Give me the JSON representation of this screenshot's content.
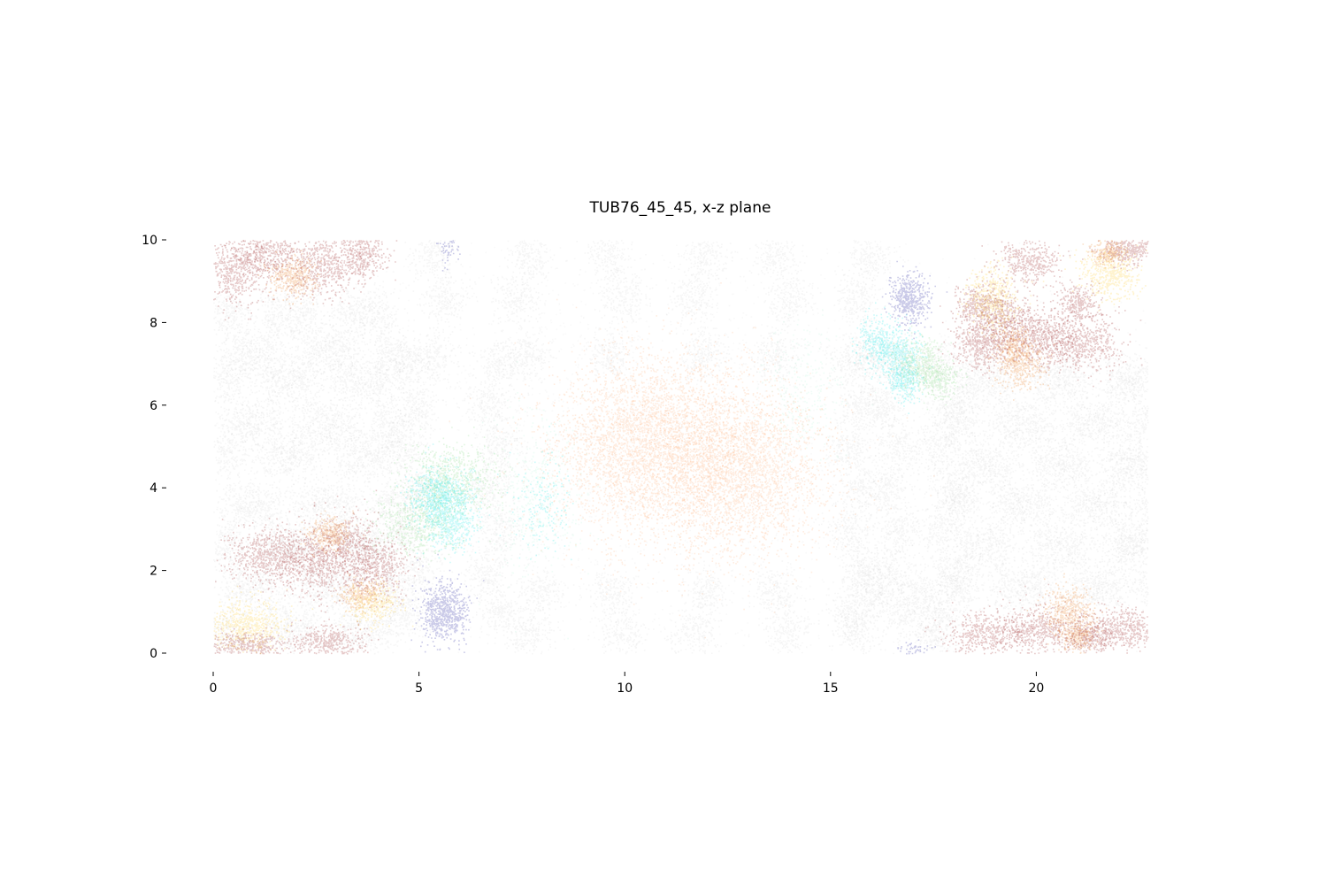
{
  "chart_data": {
    "type": "scatter",
    "title": "TUB76_45_45, x-z plane",
    "xlabel": "",
    "ylabel": "",
    "xlim": [
      0,
      22.7
    ],
    "ylim": [
      0,
      10
    ],
    "xticks": [
      0,
      5,
      10,
      15,
      20
    ],
    "yticks": [
      0,
      2,
      4,
      6,
      8,
      10
    ],
    "xtick_labels": [
      "0",
      "5",
      "10",
      "15",
      "20"
    ],
    "ytick_labels": [
      "0",
      "2",
      "4",
      "6",
      "8",
      "10"
    ],
    "grid": false,
    "legend": "none",
    "colors": {
      "gray": "#9a9a9a",
      "darkred": "#8b0a0a",
      "orange": "#e8740c",
      "gold": "#ffc81e",
      "navy": "#0c0c96",
      "cyan": "#14e6e6",
      "lightgreen": "#7ad87a",
      "aquamarine": "#8cf0c8",
      "salmon": "#ff8c46"
    },
    "clusters": [
      {
        "color": "salmon",
        "x": 10.5,
        "z": 5.1,
        "sx": 1.1,
        "sz": 1.0,
        "n": 3200
      },
      {
        "color": "salmon",
        "x": 12.8,
        "z": 4.4,
        "sx": 1.0,
        "sz": 1.0,
        "n": 2600
      },
      {
        "color": "salmon",
        "x": 11.5,
        "z": 4.8,
        "sx": 1.8,
        "sz": 1.3,
        "n": 1500
      },
      {
        "color": "aquamarine",
        "x": 7.8,
        "z": 3.8,
        "sx": 0.6,
        "sz": 1.0,
        "n": 500
      },
      {
        "color": "aquamarine",
        "x": 14.3,
        "z": 6.3,
        "sx": 0.5,
        "sz": 0.8,
        "n": 300
      },
      {
        "color": "cyan",
        "x": 8.0,
        "z": 3.6,
        "sx": 0.3,
        "sz": 0.6,
        "n": 180
      },
      {
        "color": "lightgreen",
        "x": 5.8,
        "z": 4.3,
        "sx": 0.5,
        "sz": 0.4,
        "n": 700
      },
      {
        "color": "lightgreen",
        "x": 5.0,
        "z": 3.2,
        "sx": 0.5,
        "sz": 0.4,
        "n": 600
      },
      {
        "color": "cyan",
        "x": 5.7,
        "z": 3.4,
        "sx": 0.35,
        "sz": 0.45,
        "n": 900
      },
      {
        "color": "cyan",
        "x": 5.3,
        "z": 3.9,
        "sx": 0.3,
        "sz": 0.3,
        "n": 300
      },
      {
        "color": "cyan",
        "x": 16.6,
        "z": 7.2,
        "sx": 0.3,
        "sz": 0.35,
        "n": 500
      },
      {
        "color": "cyan",
        "x": 16.1,
        "z": 7.6,
        "sx": 0.25,
        "sz": 0.3,
        "n": 250
      },
      {
        "color": "cyan",
        "x": 16.8,
        "z": 6.6,
        "sx": 0.2,
        "sz": 0.25,
        "n": 250
      },
      {
        "color": "lightgreen",
        "x": 17.2,
        "z": 7.0,
        "sx": 0.3,
        "sz": 0.3,
        "n": 400
      },
      {
        "color": "lightgreen",
        "x": 17.6,
        "z": 6.6,
        "sx": 0.25,
        "sz": 0.2,
        "n": 250
      },
      {
        "color": "navy",
        "x": 5.6,
        "z": 1.0,
        "sx": 0.28,
        "sz": 0.35,
        "n": 700
      },
      {
        "color": "navy",
        "x": 16.9,
        "z": 8.6,
        "sx": 0.22,
        "sz": 0.3,
        "n": 500
      },
      {
        "color": "navy",
        "x": 5.7,
        "z": 9.8,
        "sx": 0.15,
        "sz": 0.25,
        "n": 60
      },
      {
        "color": "navy",
        "x": 17.0,
        "z": 0.1,
        "sx": 0.2,
        "sz": 0.1,
        "n": 50
      },
      {
        "color": "darkred",
        "x": 0.5,
        "z": 9.3,
        "sx": 0.45,
        "sz": 0.4,
        "n": 600
      },
      {
        "color": "darkred",
        "x": 1.3,
        "z": 9.7,
        "sx": 0.4,
        "sz": 0.3,
        "n": 400
      },
      {
        "color": "darkred",
        "x": 2.6,
        "z": 9.4,
        "sx": 0.5,
        "sz": 0.4,
        "n": 600
      },
      {
        "color": "darkred",
        "x": 3.6,
        "z": 9.7,
        "sx": 0.3,
        "sz": 0.3,
        "n": 350
      },
      {
        "color": "orange",
        "x": 1.9,
        "z": 9.1,
        "sx": 0.3,
        "sz": 0.25,
        "n": 400
      },
      {
        "color": "darkred",
        "x": 1.4,
        "z": 2.4,
        "sx": 0.5,
        "sz": 0.35,
        "n": 700
      },
      {
        "color": "darkred",
        "x": 2.5,
        "z": 2.2,
        "sx": 0.45,
        "sz": 0.4,
        "n": 600
      },
      {
        "color": "darkred",
        "x": 3.3,
        "z": 2.6,
        "sx": 0.4,
        "sz": 0.4,
        "n": 500
      },
      {
        "color": "darkred",
        "x": 4.0,
        "z": 2.1,
        "sx": 0.35,
        "sz": 0.35,
        "n": 450
      },
      {
        "color": "orange",
        "x": 2.8,
        "z": 2.9,
        "sx": 0.25,
        "sz": 0.2,
        "n": 350
      },
      {
        "color": "orange",
        "x": 3.6,
        "z": 1.4,
        "sx": 0.25,
        "sz": 0.2,
        "n": 300
      },
      {
        "color": "gold",
        "x": 3.9,
        "z": 1.2,
        "sx": 0.3,
        "sz": 0.25,
        "n": 300
      },
      {
        "color": "gold",
        "x": 0.8,
        "z": 0.7,
        "sx": 0.45,
        "sz": 0.3,
        "n": 600
      },
      {
        "color": "darkred",
        "x": 0.8,
        "z": 0.2,
        "sx": 0.5,
        "sz": 0.15,
        "n": 400
      },
      {
        "color": "darkred",
        "x": 2.8,
        "z": 0.3,
        "sx": 0.45,
        "sz": 0.2,
        "n": 400
      },
      {
        "color": "darkred",
        "x": 18.7,
        "z": 7.5,
        "sx": 0.35,
        "sz": 0.3,
        "n": 550
      },
      {
        "color": "darkred",
        "x": 18.6,
        "z": 8.4,
        "sx": 0.3,
        "sz": 0.3,
        "n": 400
      },
      {
        "color": "darkred",
        "x": 20.0,
        "z": 7.7,
        "sx": 0.5,
        "sz": 0.35,
        "n": 600
      },
      {
        "color": "darkred",
        "x": 21.0,
        "z": 7.5,
        "sx": 0.5,
        "sz": 0.35,
        "n": 600
      },
      {
        "color": "darkred",
        "x": 21.0,
        "z": 8.5,
        "sx": 0.25,
        "sz": 0.25,
        "n": 300
      },
      {
        "color": "darkred",
        "x": 19.8,
        "z": 9.5,
        "sx": 0.35,
        "sz": 0.25,
        "n": 400
      },
      {
        "color": "darkred",
        "x": 19.3,
        "z": 8.2,
        "sx": 0.3,
        "sz": 0.3,
        "n": 300
      },
      {
        "color": "gold",
        "x": 18.9,
        "z": 8.6,
        "sx": 0.3,
        "sz": 0.35,
        "n": 450
      },
      {
        "color": "orange",
        "x": 19.6,
        "z": 7.0,
        "sx": 0.3,
        "sz": 0.3,
        "n": 450
      },
      {
        "color": "orange",
        "x": 19.4,
        "z": 7.5,
        "sx": 0.2,
        "sz": 0.2,
        "n": 200
      },
      {
        "color": "gold",
        "x": 21.8,
        "z": 9.2,
        "sx": 0.35,
        "sz": 0.3,
        "n": 500
      },
      {
        "color": "darkred",
        "x": 22.2,
        "z": 9.8,
        "sx": 0.35,
        "sz": 0.2,
        "n": 400
      },
      {
        "color": "orange",
        "x": 21.7,
        "z": 9.7,
        "sx": 0.2,
        "sz": 0.15,
        "n": 200
      },
      {
        "color": "darkred",
        "x": 18.8,
        "z": 0.5,
        "sx": 0.5,
        "sz": 0.25,
        "n": 500
      },
      {
        "color": "darkred",
        "x": 20.1,
        "z": 0.6,
        "sx": 0.45,
        "sz": 0.3,
        "n": 500
      },
      {
        "color": "darkred",
        "x": 22.1,
        "z": 0.6,
        "sx": 0.45,
        "sz": 0.25,
        "n": 500
      },
      {
        "color": "darkred",
        "x": 21.3,
        "z": 0.4,
        "sx": 0.3,
        "sz": 0.2,
        "n": 300
      },
      {
        "color": "orange",
        "x": 20.8,
        "z": 1.0,
        "sx": 0.3,
        "sz": 0.3,
        "n": 450
      },
      {
        "color": "orange",
        "x": 21.0,
        "z": 0.4,
        "sx": 0.2,
        "sz": 0.15,
        "n": 200
      }
    ],
    "gray_grid": {
      "left": {
        "x": [
          0.5,
          1.4,
          2.3,
          3.2,
          4.1
        ],
        "z": [
          0.6,
          1.6,
          2.6,
          3.6,
          4.8,
          5.6,
          6.6,
          7.3,
          8.2
        ]
      },
      "right": {
        "x": [
          18.3,
          19.2,
          20.1,
          21.0,
          21.9,
          22.6
        ],
        "z": [
          1.6,
          2.6,
          3.6,
          4.6,
          5.6,
          6.6
        ]
      },
      "middle_top": {
        "x": [
          5.5,
          7.5,
          9.8,
          11.8,
          13.8,
          15.8
        ],
        "z": [
          7.2,
          8.6,
          9.6
        ]
      },
      "middle_bottom": {
        "x": [
          7.8,
          9.8,
          11.8,
          13.8,
          15.8,
          17.3
        ],
        "z": [
          0.5,
          1.5
        ]
      },
      "side_columns": {
        "x": [
          4.8,
          6.8,
          15.6,
          16.5,
          17.8
        ],
        "z": [
          1.0,
          2.0,
          3.0,
          4.0,
          5.0,
          6.0,
          7.0
        ]
      }
    }
  }
}
